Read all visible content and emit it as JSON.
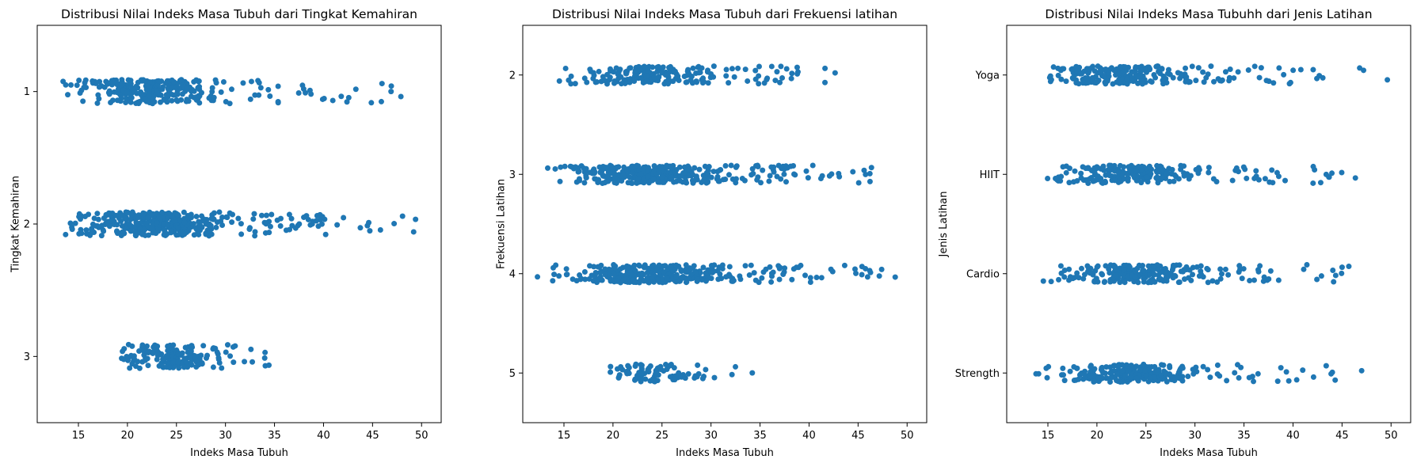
{
  "chart_data": [
    {
      "type": "scatter",
      "subtype": "strip",
      "title": "Distribusi Nilai Indeks Masa Tubuh dari Tingkat Kemahiran",
      "xlabel": "Indeks Masa Tubuh",
      "ylabel": "Tingkat Kemahiran",
      "xlim": [
        10.8,
        52
      ],
      "xticks": [
        "15",
        "20",
        "25",
        "30",
        "35",
        "40",
        "45",
        "50"
      ],
      "categories": [
        "1",
        "2",
        "3"
      ],
      "color": "#1f77b4",
      "grid": false,
      "groups": [
        {
          "category": "1",
          "count": 300,
          "bmi_range": [
            12.5,
            48
          ],
          "bmi_peak": 22
        },
        {
          "category": "2",
          "count": 380,
          "bmi_range": [
            12.2,
            49.8
          ],
          "bmi_peak": 23
        },
        {
          "category": "3",
          "count": 180,
          "bmi_range": [
            17.2,
            34.8
          ],
          "bmi_peak": 24
        }
      ]
    },
    {
      "type": "scatter",
      "subtype": "strip",
      "title": "Distribusi Nilai Indeks Masa Tubuh dari Frekuensi latihan",
      "xlabel": "Indeks Masa Tubuh",
      "ylabel": "Frekuensi Latihan",
      "xlim": [
        10.8,
        52
      ],
      "xticks": [
        "15",
        "20",
        "25",
        "30",
        "35",
        "40",
        "45",
        "50"
      ],
      "categories": [
        "2",
        "3",
        "4",
        "5"
      ],
      "color": "#1f77b4",
      "grid": false,
      "groups": [
        {
          "category": "2",
          "count": 200,
          "bmi_range": [
            12.5,
            47.8
          ],
          "bmi_peak": 23
        },
        {
          "category": "3",
          "count": 360,
          "bmi_range": [
            12.2,
            46.8
          ],
          "bmi_peak": 23
        },
        {
          "category": "4",
          "count": 330,
          "bmi_range": [
            12.3,
            50
          ],
          "bmi_peak": 23.5
        },
        {
          "category": "5",
          "count": 90,
          "bmi_range": [
            17.3,
            34.6
          ],
          "bmi_peak": 24
        }
      ]
    },
    {
      "type": "scatter",
      "subtype": "strip",
      "title": "Distribusi Nilai Indeks Masa Tubuhh dari Jenis Latihan",
      "xlabel": "Indeks Masa Tubuh",
      "ylabel": "Jenis Latihan",
      "xlim": [
        10.8,
        52
      ],
      "xticks": [
        "15",
        "20",
        "25",
        "30",
        "35",
        "40",
        "45",
        "50"
      ],
      "categories": [
        "Yoga",
        "HIIT",
        "Cardio",
        "Strength"
      ],
      "color": "#1f77b4",
      "grid": false,
      "groups": [
        {
          "category": "Yoga",
          "count": 240,
          "bmi_range": [
            12.8,
            50
          ],
          "bmi_peak": 22
        },
        {
          "category": "HIIT",
          "count": 220,
          "bmi_range": [
            12.8,
            47.2
          ],
          "bmi_peak": 22.5
        },
        {
          "category": "Cardio",
          "count": 250,
          "bmi_range": [
            12.5,
            47.2
          ],
          "bmi_peak": 23
        },
        {
          "category": "Strength",
          "count": 240,
          "bmi_range": [
            12.8,
            48.5
          ],
          "bmi_peak": 23
        }
      ]
    }
  ]
}
